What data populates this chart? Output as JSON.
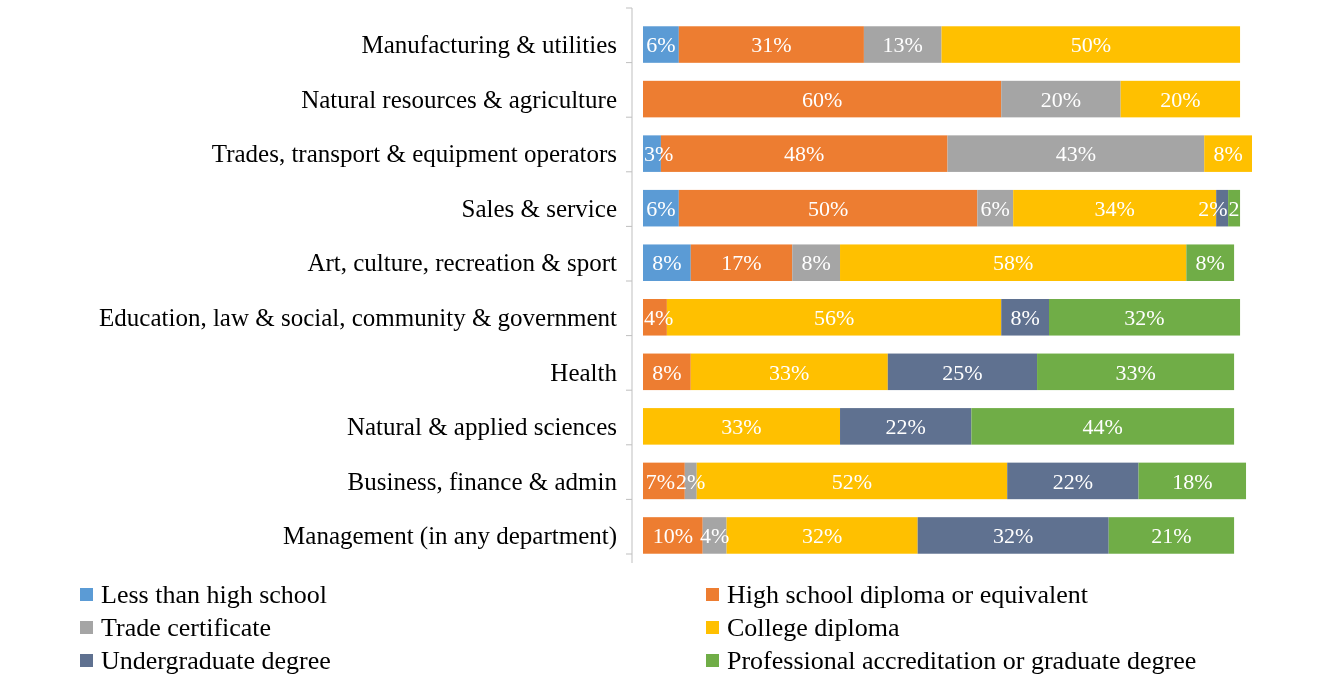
{
  "chart_data": {
    "type": "bar",
    "orientation": "horizontal",
    "stacked": true,
    "legend": "bottom",
    "tick_labels": "y",
    "xlim": [
      0,
      102
    ],
    "categories": [
      "Manufacturing & utilities",
      "Natural resources & agriculture",
      "Trades, transport & equipment operators",
      "Sales & service",
      "Art, culture, recreation & sport",
      "Education, law & social, community & government",
      "Health",
      "Natural & applied sciences",
      "Business, finance & admin",
      "Management (in any department)"
    ],
    "series": [
      {
        "name": "Less than high school",
        "color": "#5b9bd5",
        "values": [
          6,
          null,
          3,
          6,
          8,
          null,
          null,
          null,
          null,
          null
        ],
        "value_labels": [
          "6%",
          null,
          "3%",
          "6%",
          "8%",
          null,
          null,
          null,
          null,
          null
        ]
      },
      {
        "name": "High school diploma or equivalent",
        "color": "#ed7d31",
        "values": [
          31,
          60,
          48,
          50,
          17,
          4,
          8,
          null,
          7,
          10
        ],
        "value_labels": [
          "31%",
          "60%",
          "48%",
          "50%",
          "17%",
          "4%",
          "8%",
          null,
          "7%",
          "10%"
        ]
      },
      {
        "name": "Trade certificate",
        "color": "#a5a5a5",
        "values": [
          13,
          20,
          43,
          6,
          8,
          null,
          null,
          null,
          2,
          4
        ],
        "value_labels": [
          "13%",
          "20%",
          "43%",
          "6%",
          "8%",
          null,
          null,
          null,
          "2%",
          "4%"
        ]
      },
      {
        "name": "College diploma",
        "color": "#ffc000",
        "values": [
          50,
          20,
          8,
          34,
          58,
          56,
          33,
          33,
          52,
          32
        ],
        "value_labels": [
          "50%",
          "20%",
          "8%",
          "34%",
          "58%",
          "56%",
          "33%",
          "33%",
          "52%",
          "32%"
        ]
      },
      {
        "name": "Undergraduate degree",
        "color": "#5f7190",
        "values": [
          null,
          null,
          null,
          2,
          null,
          8,
          25,
          22,
          22,
          32
        ],
        "value_labels": [
          null,
          null,
          null,
          "2%",
          null,
          "8%",
          "25%",
          "22%",
          "22%",
          "32%"
        ]
      },
      {
        "name": "Professional accreditation or graduate degree",
        "color": "#70ad47",
        "values": [
          null,
          null,
          null,
          2,
          8,
          32,
          33,
          44,
          18,
          21
        ],
        "value_labels": [
          null,
          null,
          null,
          "2",
          "8%",
          "32%",
          "33%",
          "44%",
          "18%",
          "21%"
        ]
      }
    ]
  }
}
